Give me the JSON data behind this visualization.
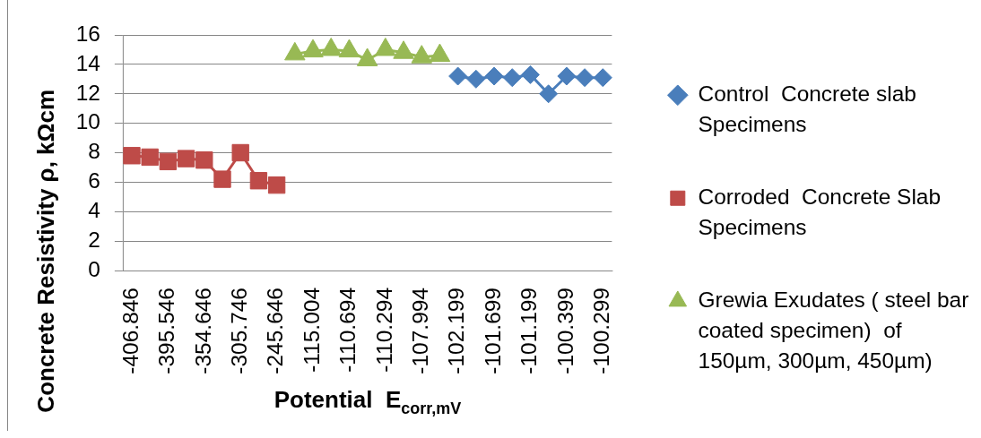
{
  "chart_data": {
    "type": "line",
    "xlabel": "Potential  E$_{corr,mV}$",
    "ylabel": "Concrete Resistivity ρ, kΩcm",
    "categories": [
      "-406.846",
      null,
      "-395.546",
      null,
      "-354.646",
      null,
      "-305.746",
      null,
      "-245.646",
      null,
      "-115.004",
      null,
      "-110.694",
      null,
      "-110.294",
      null,
      "-107.994",
      null,
      "-102.199",
      null,
      "-101.699",
      null,
      "-101.199",
      null,
      "-100.399",
      null,
      "-100.299"
    ],
    "series": [
      {
        "name": "Control  Concrete slab Specimens",
        "color": "#4a7ebb",
        "marker": "diamond",
        "values": [
          null,
          null,
          null,
          null,
          null,
          null,
          null,
          null,
          null,
          null,
          null,
          null,
          null,
          null,
          null,
          null,
          null,
          null,
          13.2,
          13.0,
          13.2,
          13.1,
          13.3,
          12.0,
          13.2,
          13.1,
          13.1
        ]
      },
      {
        "name": "Corroded  Concrete Slab Specimens",
        "color": "#be4b48",
        "marker": "square",
        "values": [
          7.8,
          7.7,
          7.4,
          7.6,
          7.5,
          6.2,
          8.0,
          6.1,
          5.8,
          null,
          null,
          null,
          null,
          null,
          null,
          null,
          null,
          null,
          null,
          null,
          null,
          null,
          null,
          null,
          null,
          null,
          null
        ]
      },
      {
        "name": "Grewia Exudates ( steel bar coated specimen)  of 150µm, 300µm, 450µm)",
        "color": "#98b954",
        "marker": "triangle",
        "values": [
          null,
          null,
          null,
          null,
          null,
          null,
          null,
          null,
          null,
          14.7,
          14.9,
          15.0,
          14.9,
          14.3,
          15.0,
          14.8,
          14.5,
          14.6,
          null,
          null,
          null,
          null,
          null,
          null,
          null,
          null,
          null
        ]
      }
    ],
    "ylim": [
      0,
      16
    ],
    "yticks": [
      0,
      2,
      4,
      6,
      8,
      10,
      12,
      14,
      16
    ],
    "grid": "y",
    "legend": "right",
    "line_style": "solid"
  }
}
